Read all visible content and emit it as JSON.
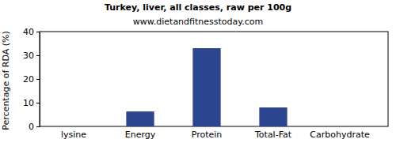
{
  "chart_data": {
    "type": "bar",
    "title": "Turkey, liver, all classes, raw per 100g",
    "subtitle": "www.dietandfitnesstoday.com",
    "y_label": "Percentage of RDA (%)",
    "categories": [
      "lysine",
      "Energy",
      "Protein",
      "Total-Fat",
      "Carbohydrate"
    ],
    "values": [
      0,
      6.3,
      33,
      8,
      0
    ],
    "color": "#2b4590",
    "ylim": [
      0,
      40
    ],
    "yticks": [
      0,
      10,
      20,
      30,
      40
    ],
    "grid": false
  }
}
